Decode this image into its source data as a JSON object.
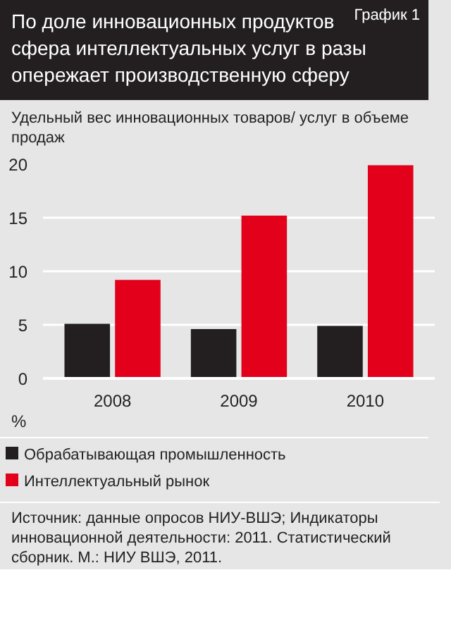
{
  "chart_data": {
    "type": "bar",
    "title": "По доле инновационных продуктов сфера интеллектуальных услуг в разы опережает производственную сферу",
    "annotations": [
      "График 1",
      "Источник: данные опросов НИУ-ВШЭ; Индикаторы инновационной деятельности: 2011. Статистический сборник. М.: НИУ ВШЭ, 2011."
    ],
    "subtitle": "Удельный вес инновационных товаров/ услуг в объеме продаж",
    "ylabel": "%",
    "categories": [
      "2008",
      "2009",
      "2010"
    ],
    "series": [
      {
        "name": "Обрабатывающая промышленность",
        "color": "#231f20",
        "values": [
          5.1,
          4.6,
          4.9
        ]
      },
      {
        "name": "Интеллектуальный рынок",
        "color": "#e2001a",
        "values": [
          9.2,
          15.2,
          19.9
        ]
      }
    ],
    "ylim": [
      0,
      20
    ],
    "yticks": [
      0,
      5,
      10,
      15,
      20
    ],
    "grid": "y",
    "legend": "bottom"
  }
}
